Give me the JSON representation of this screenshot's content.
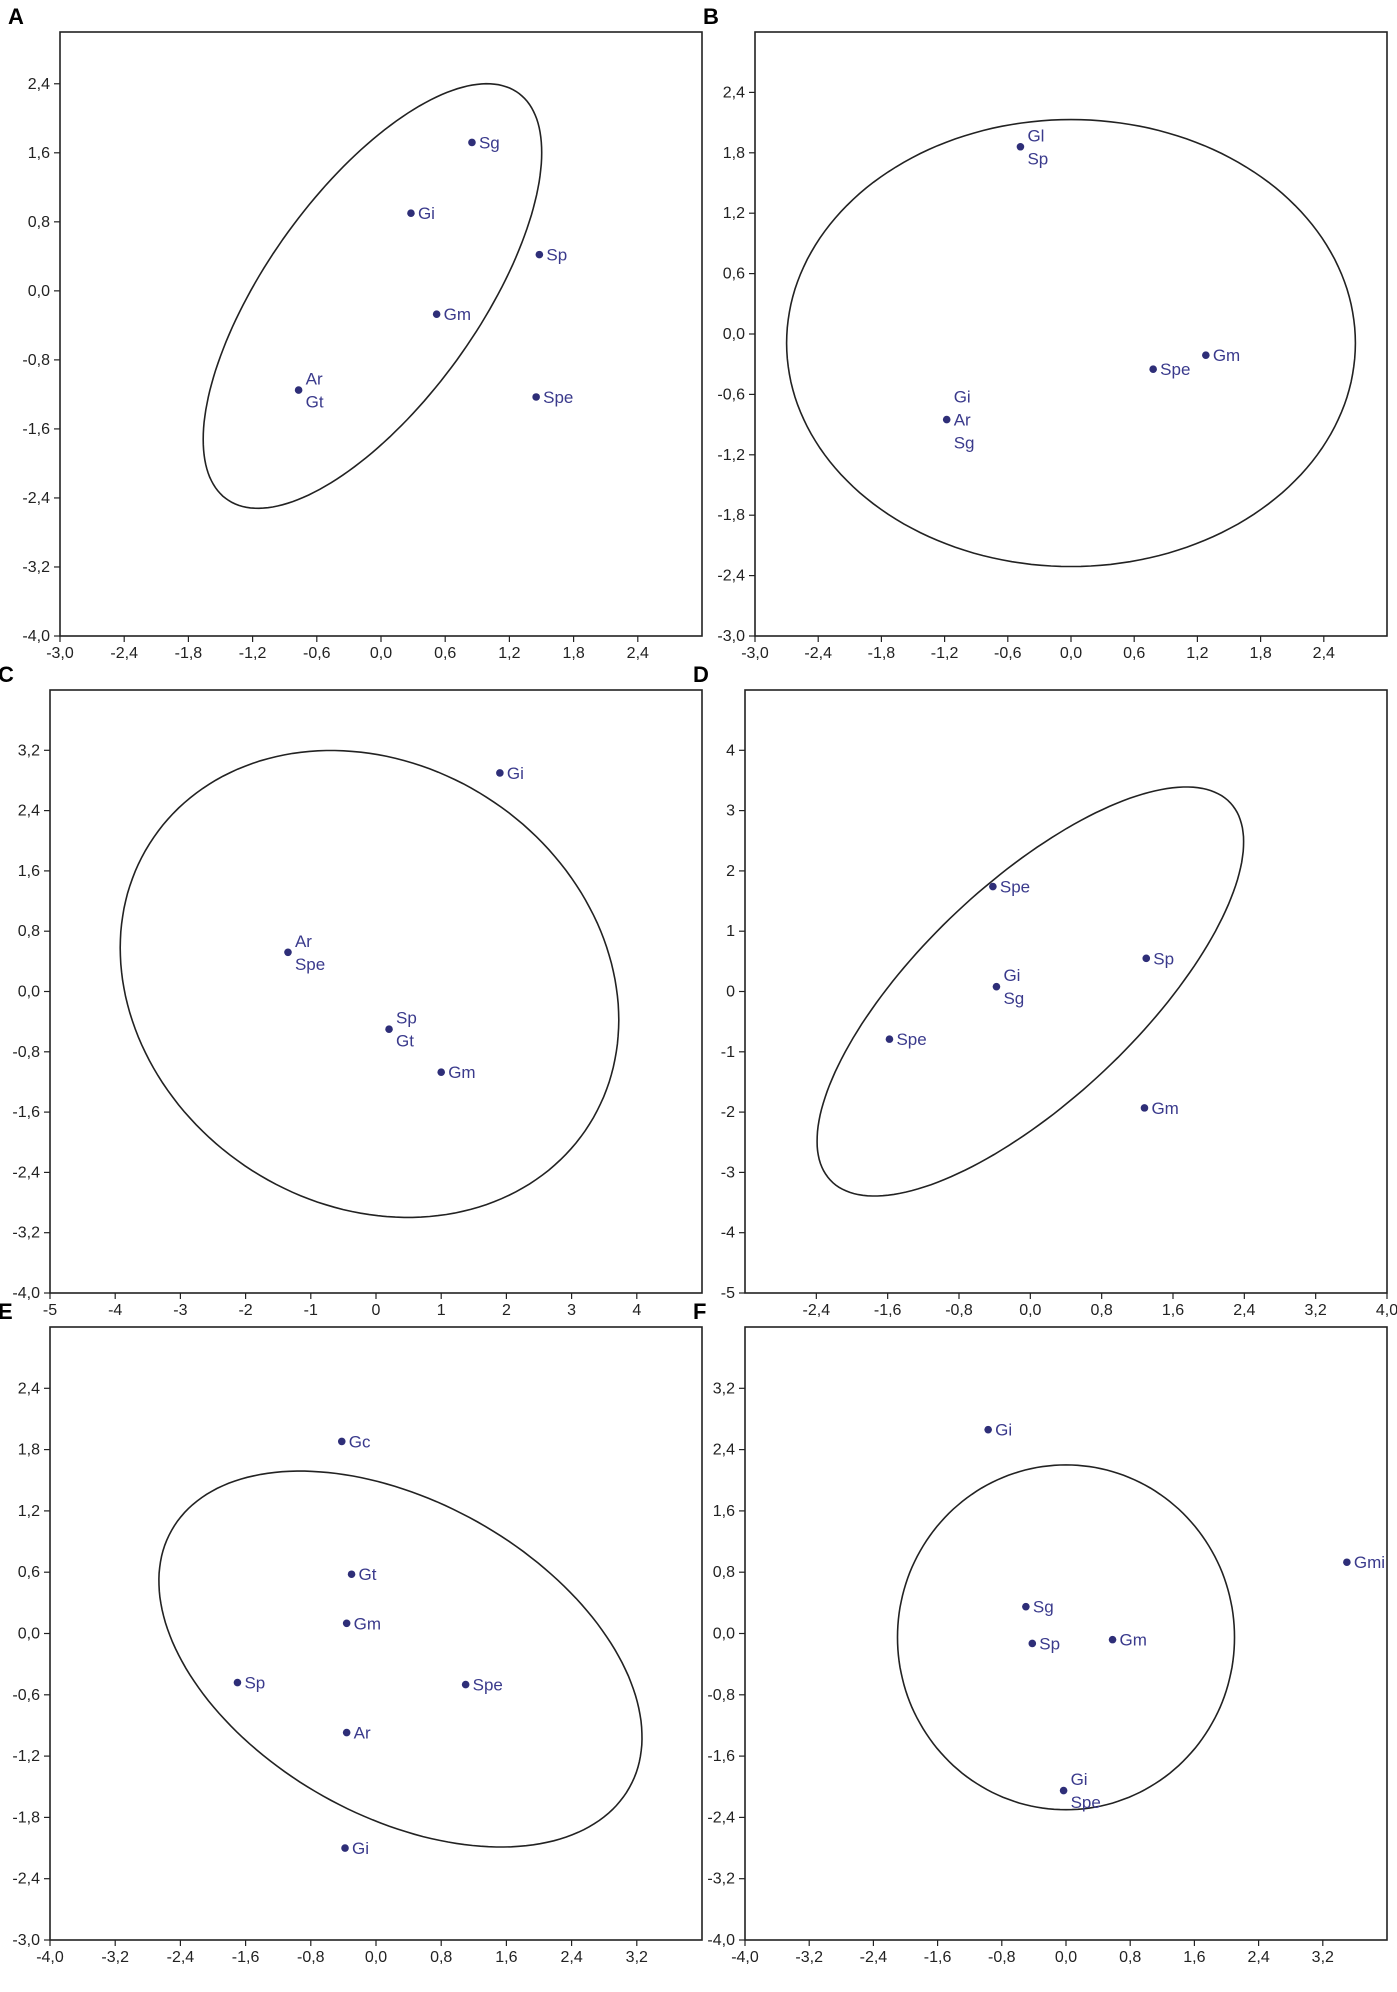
{
  "chart_data": [
    {
      "type": "scatter",
      "panel": "A",
      "xlim": [
        -3.0,
        3.0
      ],
      "ylim": [
        -4.0,
        3.0
      ],
      "xticks": [
        -3.0,
        -2.4,
        -1.8,
        -1.2,
        -0.6,
        0.0,
        0.6,
        1.2,
        1.8,
        2.4
      ],
      "yticks": [
        -4.0,
        -3.2,
        -2.4,
        -1.6,
        -0.8,
        0.0,
        0.8,
        1.6,
        2.4
      ],
      "xtick_labels": [
        "-3,0",
        "-2,4",
        "-1,8",
        "-1,2",
        "-0,6",
        "0,0",
        "0,6",
        "1,2",
        "1,8",
        "2,4"
      ],
      "ytick_labels": [
        "-4,0",
        "-3,2",
        "-2,4",
        "-1,6",
        "-0,8",
        "0,0",
        "0,8",
        "1,6",
        "2,4"
      ],
      "points": [
        {
          "x": 0.85,
          "y": 1.72,
          "labels": [
            "Sg"
          ]
        },
        {
          "x": 0.28,
          "y": 0.9,
          "labels": [
            "Gi"
          ]
        },
        {
          "x": 1.48,
          "y": 0.42,
          "labels": [
            "Sp"
          ]
        },
        {
          "x": 0.52,
          "y": -0.27,
          "labels": [
            "Gm"
          ]
        },
        {
          "x": -0.77,
          "y": -1.15,
          "labels": [
            "Ar",
            "Gt"
          ]
        },
        {
          "x": 1.45,
          "y": -1.23,
          "labels": [
            "Spe"
          ]
        }
      ],
      "ellipse": {
        "cx": -0.08,
        "cy": -0.06,
        "a": 2.73,
        "b": 1.05,
        "angle_deg": 62
      }
    },
    {
      "type": "scatter",
      "panel": "B",
      "xlim": [
        -3.0,
        3.0
      ],
      "ylim": [
        -3.0,
        3.0
      ],
      "xticks": [
        -3.0,
        -2.4,
        -1.8,
        -1.2,
        -0.6,
        0.0,
        0.6,
        1.2,
        1.8,
        2.4
      ],
      "yticks": [
        -3.0,
        -2.4,
        -1.8,
        -1.2,
        -0.6,
        0.0,
        0.6,
        1.2,
        1.8,
        2.4
      ],
      "xtick_labels": [
        "-3,0",
        "-2,4",
        "-1,8",
        "-1,2",
        "-0,6",
        "0,0",
        "0,6",
        "1,2",
        "1,8",
        "2,4"
      ],
      "ytick_labels": [
        "-3,0",
        "-2,4",
        "-1,8",
        "-1,2",
        "-0,6",
        "0,0",
        "0,6",
        "1,2",
        "1,8",
        "2,4"
      ],
      "points": [
        {
          "x": -0.48,
          "y": 1.86,
          "labels": [
            "Gl",
            "Sp"
          ]
        },
        {
          "x": 1.28,
          "y": -0.21,
          "labels": [
            "Gm"
          ]
        },
        {
          "x": 0.78,
          "y": -0.35,
          "labels": [
            "Spe"
          ]
        },
        {
          "x": -1.18,
          "y": -0.85,
          "labels": [
            "Gi",
            "Ar",
            "Sg"
          ]
        }
      ],
      "ellipse": {
        "cx": 0.0,
        "cy": -0.09,
        "a": 2.7,
        "b": 2.22,
        "angle_deg": 0
      }
    },
    {
      "type": "scatter",
      "panel": "C",
      "xlim": [
        -5.0,
        5.0
      ],
      "ylim": [
        -4.0,
        4.0
      ],
      "xticks": [
        -5,
        -4,
        -3,
        -2,
        -1,
        0,
        1,
        2,
        3,
        4
      ],
      "yticks": [
        -4.0,
        -3.2,
        -2.4,
        -1.6,
        -0.8,
        0.0,
        0.8,
        1.6,
        2.4,
        3.2
      ],
      "xtick_labels": [
        "-5",
        "-4",
        "-3",
        "-2",
        "-1",
        "0",
        "1",
        "2",
        "3",
        "4"
      ],
      "ytick_labels": [
        "-4,0",
        "-3,2",
        "-2,4",
        "-1,6",
        "-0,8",
        "0,0",
        "0,8",
        "1,6",
        "2,4",
        "3,2"
      ],
      "points": [
        {
          "x": 1.9,
          "y": 2.9,
          "labels": [
            "Gi"
          ]
        },
        {
          "x": -1.35,
          "y": 0.52,
          "labels": [
            "Ar",
            "Spe"
          ]
        },
        {
          "x": 0.2,
          "y": -0.5,
          "labels": [
            "Sp",
            "Gt"
          ]
        },
        {
          "x": 1.0,
          "y": -1.07,
          "labels": [
            "Gm"
          ]
        }
      ],
      "ellipse": {
        "cx": -0.1,
        "cy": 0.1,
        "a": 3.9,
        "b": 3.0,
        "angle_deg": -18
      }
    },
    {
      "type": "scatter",
      "panel": "D",
      "xlim": [
        -3.2,
        4.0
      ],
      "ylim": [
        -5.0,
        5.0
      ],
      "xticks": [
        -2.4,
        -1.6,
        -0.8,
        0.0,
        0.8,
        1.6,
        2.4,
        3.2,
        4.0
      ],
      "yticks": [
        -5,
        -4,
        -3,
        -2,
        -1,
        0,
        1,
        2,
        3,
        4
      ],
      "xtick_labels": [
        "-2,4",
        "-1,6",
        "-0,8",
        "0,0",
        "0,8",
        "1,6",
        "2,4",
        "3,2",
        "4,0"
      ],
      "ytick_labels": [
        "-5",
        "-4",
        "-3",
        "-2",
        "-1",
        "0",
        "1",
        "2",
        "3",
        "4"
      ],
      "points": [
        {
          "x": -0.42,
          "y": 1.74,
          "labels": [
            "Spe"
          ]
        },
        {
          "x": 1.3,
          "y": 0.55,
          "labels": [
            "Sp"
          ]
        },
        {
          "x": -0.38,
          "y": 0.08,
          "labels": [
            "Gi",
            "Sg"
          ]
        },
        {
          "x": -1.58,
          "y": -0.79,
          "labels": [
            "Spe"
          ]
        },
        {
          "x": 1.28,
          "y": -1.93,
          "labels": [
            "Gm"
          ]
        }
      ],
      "ellipse": {
        "cx": 0.0,
        "cy": 0.0,
        "a": 3.9,
        "b": 1.42,
        "angle_deg": 58
      }
    },
    {
      "type": "scatter",
      "panel": "E",
      "xlim": [
        -4.0,
        4.0
      ],
      "ylim": [
        -3.0,
        3.0
      ],
      "xticks": [
        -4.0,
        -3.2,
        -2.4,
        -1.6,
        -0.8,
        0.0,
        0.8,
        1.6,
        2.4,
        3.2
      ],
      "yticks": [
        -3.0,
        -2.4,
        -1.8,
        -1.2,
        -0.6,
        0.0,
        0.6,
        1.2,
        1.8,
        2.4
      ],
      "xtick_labels": [
        "-4,0",
        "-3,2",
        "-2,4",
        "-1,6",
        "-0,8",
        "0,0",
        "0,8",
        "1,6",
        "2,4",
        "3,2"
      ],
      "ytick_labels": [
        "-3,0",
        "-2,4",
        "-1,8",
        "-1,2",
        "-0,6",
        "0,0",
        "0,6",
        "1,2",
        "1,8",
        "2,4"
      ],
      "points": [
        {
          "x": -0.42,
          "y": 1.88,
          "labels": [
            "Gc"
          ]
        },
        {
          "x": -0.3,
          "y": 0.58,
          "labels": [
            "Gt"
          ]
        },
        {
          "x": -0.36,
          "y": 0.1,
          "labels": [
            "Gm"
          ]
        },
        {
          "x": -1.7,
          "y": -0.48,
          "labels": [
            "Sp"
          ]
        },
        {
          "x": 1.1,
          "y": -0.5,
          "labels": [
            "Spe"
          ]
        },
        {
          "x": -0.36,
          "y": -0.97,
          "labels": [
            "Ar"
          ]
        },
        {
          "x": -0.38,
          "y": -2.1,
          "labels": [
            "Gi"
          ]
        }
      ],
      "ellipse": {
        "cx": 0.3,
        "cy": -0.25,
        "a": 3.1,
        "b": 1.6,
        "angle_deg": -20
      }
    },
    {
      "type": "scatter",
      "panel": "F",
      "xlim": [
        -4.0,
        4.0
      ],
      "ylim": [
        -4.0,
        4.0
      ],
      "xticks": [
        -4.0,
        -3.2,
        -2.4,
        -1.6,
        -0.8,
        0.0,
        0.8,
        1.6,
        2.4,
        3.2
      ],
      "yticks": [
        -4.0,
        -3.2,
        -2.4,
        -1.6,
        -0.8,
        0.0,
        0.8,
        1.6,
        2.4,
        3.2
      ],
      "xtick_labels": [
        "-4,0",
        "-3,2",
        "-2,4",
        "-1,6",
        "-0,8",
        "0,0",
        "0,8",
        "1,6",
        "2,4",
        "3,2"
      ],
      "ytick_labels": [
        "-4,0",
        "-3,2",
        "-2,4",
        "-1,6",
        "-0,8",
        "0,0",
        "0,8",
        "1,6",
        "2,4",
        "3,2"
      ],
      "points": [
        {
          "x": -0.97,
          "y": 2.66,
          "labels": [
            "Gi"
          ]
        },
        {
          "x": 3.5,
          "y": 0.93,
          "labels": [
            "Gmi"
          ]
        },
        {
          "x": -0.5,
          "y": 0.35,
          "labels": [
            "Sg"
          ]
        },
        {
          "x": 0.58,
          "y": -0.08,
          "labels": [
            "Gm"
          ]
        },
        {
          "x": -0.42,
          "y": -0.13,
          "labels": [
            "Sp"
          ]
        },
        {
          "x": -0.03,
          "y": -2.05,
          "labels": [
            "Gi",
            "Spe"
          ]
        }
      ],
      "ellipse": {
        "cx": 0.0,
        "cy": -0.05,
        "a": 2.1,
        "b": 2.25,
        "angle_deg": 0
      }
    }
  ]
}
